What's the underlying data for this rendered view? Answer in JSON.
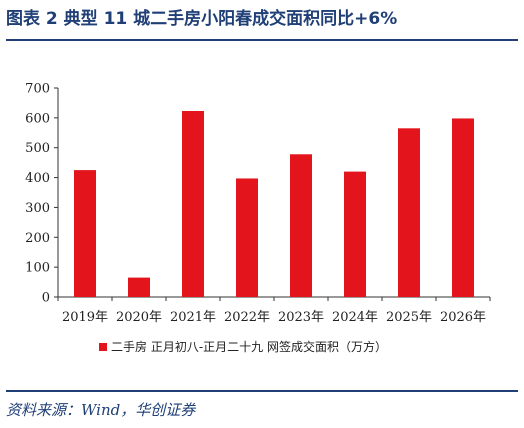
{
  "figure": {
    "title": "图表 2   典型 11 城二手房小阳春成交面积同比+6%",
    "source": "资料来源：Wind，华创证券"
  },
  "colors": {
    "bar": "#e3141b",
    "rule": "#1f3f76",
    "axis": "#333333"
  },
  "chart_data": {
    "type": "bar",
    "title": "",
    "xlabel": "",
    "ylabel": "",
    "categories": [
      "2019年",
      "2020年",
      "2021年",
      "2022年",
      "2023年",
      "2024年",
      "2025年",
      "2026年"
    ],
    "series": [
      {
        "name": "二手房 正月初八-正月二十九 网签成交面积（万方）",
        "values": [
          425,
          65,
          623,
          397,
          478,
          420,
          565,
          598
        ]
      }
    ],
    "ylim": [
      0,
      700
    ],
    "yticks": [
      0,
      100,
      200,
      300,
      400,
      500,
      600,
      700
    ],
    "grid": false,
    "legend_position": "bottom"
  }
}
